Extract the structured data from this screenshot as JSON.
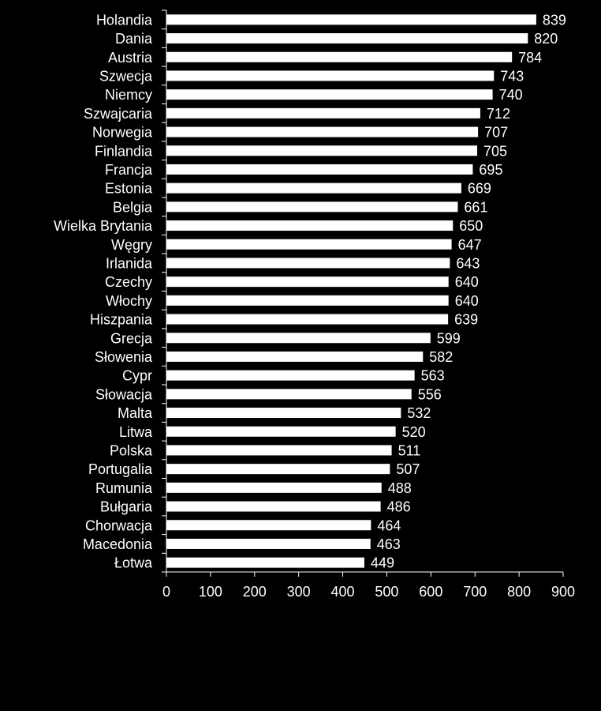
{
  "chart_data": {
    "type": "bar",
    "orientation": "horizontal",
    "categories": [
      "Holandia",
      "Dania",
      "Austria",
      "Szwecja",
      "Niemcy",
      "Szwajcaria",
      "Norwegia",
      "Finlandia",
      "Francja",
      "Estonia",
      "Belgia",
      "Wielka Brytania",
      "Węgry",
      "Irlanida",
      "Czechy",
      "Włochy",
      "Hiszpania",
      "Grecja",
      "Słowenia",
      "Cypr",
      "Słowacja",
      "Malta",
      "Litwa",
      "Polska",
      "Portugalia",
      "Rumunia",
      "Bułgaria",
      "Chorwacja",
      "Macedonia",
      "Łotwa"
    ],
    "values": [
      839,
      820,
      784,
      743,
      740,
      712,
      707,
      705,
      695,
      669,
      661,
      650,
      647,
      643,
      640,
      640,
      639,
      599,
      582,
      563,
      556,
      532,
      520,
      511,
      507,
      488,
      486,
      464,
      463,
      449
    ],
    "data_labels": [
      "839",
      "820",
      "784",
      "743",
      "740",
      "712",
      "707",
      "705",
      "695",
      "669",
      "661",
      "650",
      "647",
      "643",
      "640",
      "640",
      "639",
      "599",
      "582",
      "563",
      "556",
      "532",
      "520",
      "511",
      "507",
      "488",
      "486",
      "464",
      "463",
      "449"
    ],
    "xlim": [
      0,
      900
    ],
    "xticks": [
      0,
      100,
      200,
      300,
      400,
      500,
      600,
      700,
      800,
      900
    ],
    "xtick_labels": [
      "0",
      "100",
      "200",
      "300",
      "400",
      "500",
      "600",
      "700",
      "800",
      "900"
    ],
    "title": "",
    "xlabel": "",
    "ylabel": "",
    "grid": false,
    "legend": "none",
    "colors": {
      "background": "#000000",
      "bar": "#ffffff",
      "axis": "#ffffff",
      "text": "#ffffff"
    }
  }
}
